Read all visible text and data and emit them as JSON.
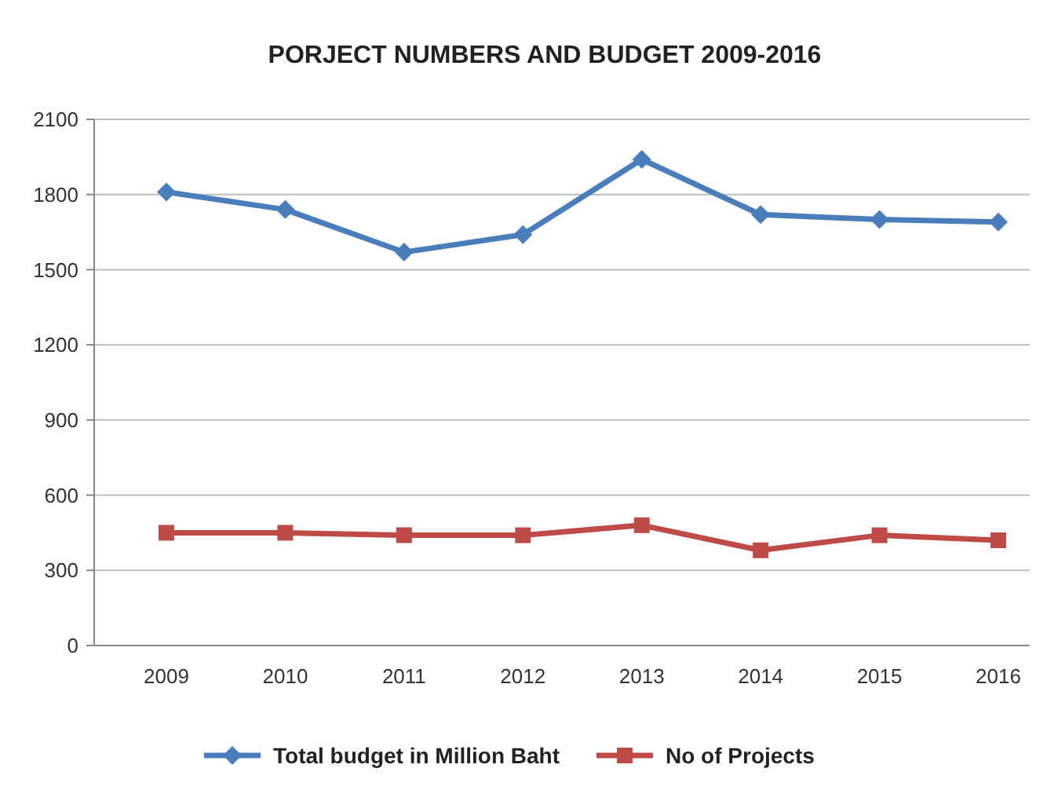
{
  "chart_data": {
    "type": "line",
    "title": "PORJECT NUMBERS AND BUDGET 2009-2016",
    "categories": [
      "2009",
      "2010",
      "2011",
      "2012",
      "2013",
      "2014",
      "2015",
      "2016"
    ],
    "series": [
      {
        "name": "Total budget in Million Baht",
        "color": "#4a7ebb",
        "values": [
          1810,
          1740,
          1570,
          1640,
          1940,
          1720,
          1700,
          1690
        ],
        "marker": "diamond"
      },
      {
        "name": "No of Projects",
        "color": "#be4b48",
        "values": [
          450,
          450,
          440,
          440,
          480,
          380,
          440,
          420
        ],
        "marker": "square"
      }
    ],
    "ylim": [
      0,
      2100
    ],
    "yticks": [
      0,
      300,
      600,
      900,
      1200,
      1500,
      1800,
      2100
    ],
    "grid": "y",
    "legend": "bottom",
    "line_style": "solid"
  }
}
